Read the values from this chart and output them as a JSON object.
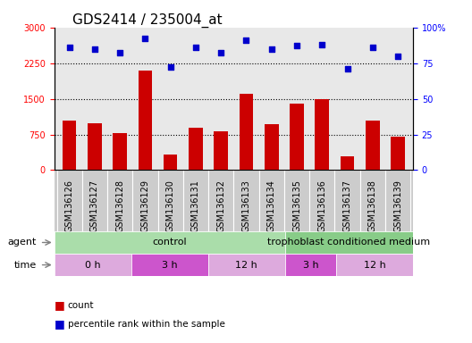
{
  "title": "GDS2414 / 235004_at",
  "samples": [
    "GSM136126",
    "GSM136127",
    "GSM136128",
    "GSM136129",
    "GSM136130",
    "GSM136131",
    "GSM136132",
    "GSM136133",
    "GSM136134",
    "GSM136135",
    "GSM136136",
    "GSM136137",
    "GSM136138",
    "GSM136139"
  ],
  "counts": [
    1050,
    980,
    780,
    2100,
    330,
    900,
    820,
    1600,
    960,
    1400,
    1490,
    290,
    1050,
    700
  ],
  "percentile_ranks": [
    86,
    85,
    82,
    92,
    72,
    86,
    82,
    91,
    85,
    87,
    88,
    71,
    86,
    80
  ],
  "count_ylim": [
    0,
    3000
  ],
  "count_yticks": [
    0,
    750,
    1500,
    2250,
    3000
  ],
  "percentile_ylim": [
    0,
    100
  ],
  "percentile_yticks": [
    0,
    25,
    50,
    75,
    100
  ],
  "percentile_yticklabels": [
    "0",
    "25",
    "50",
    "75",
    "100%"
  ],
  "bar_color": "#cc0000",
  "scatter_color": "#0000cc",
  "agent_groups": [
    {
      "label": "control",
      "start": 0,
      "end": 9,
      "color": "#aaddaa"
    },
    {
      "label": "trophoblast conditioned medium",
      "start": 9,
      "end": 14,
      "color": "#88cc88"
    }
  ],
  "time_groups": [
    {
      "label": "0 h",
      "start": 0,
      "end": 3,
      "color": "#ddaadd"
    },
    {
      "label": "3 h",
      "start": 3,
      "end": 6,
      "color": "#cc55cc"
    },
    {
      "label": "12 h",
      "start": 6,
      "end": 9,
      "color": "#ddaadd"
    },
    {
      "label": "3 h",
      "start": 9,
      "end": 11,
      "color": "#cc55cc"
    },
    {
      "label": "12 h",
      "start": 11,
      "end": 14,
      "color": "#ddaadd"
    }
  ],
  "plot_bg": "#e8e8e8",
  "label_bg": "#cccccc",
  "white": "#ffffff",
  "bar_width": 0.55,
  "title_fontsize": 11,
  "tick_fontsize": 7,
  "label_fontsize": 8
}
